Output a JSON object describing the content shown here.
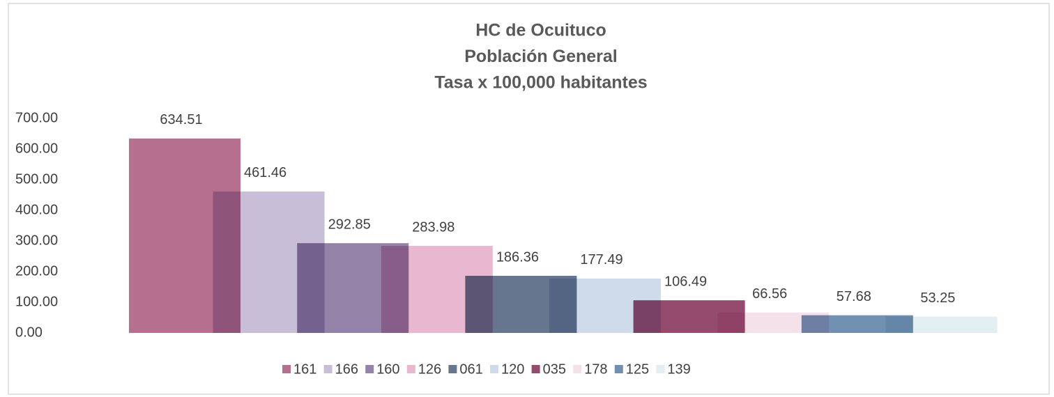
{
  "chart_data": {
    "type": "bar",
    "title": [
      "HC de Ocuituco",
      "Población General",
      "Tasa x 100,000 habitantes"
    ],
    "categories": [
      null
    ],
    "series": [
      {
        "name": "161",
        "color": "#b5708f",
        "values": [
          634.51
        ]
      },
      {
        "name": "166",
        "color": "#c8bed8",
        "values": [
          461.46
        ]
      },
      {
        "name": "160",
        "color": "#9482a8",
        "values": [
          292.85
        ]
      },
      {
        "name": "126",
        "color": "#e8b8d0",
        "values": [
          283.98
        ]
      },
      {
        "name": "061",
        "color": "#66768e",
        "values": [
          186.36
        ]
      },
      {
        "name": "120",
        "color": "#cfdbea",
        "values": [
          177.49
        ]
      },
      {
        "name": "035",
        "color": "#954b6e",
        "values": [
          106.49
        ]
      },
      {
        "name": "178",
        "color": "#f5e1ea",
        "values": [
          66.56
        ]
      },
      {
        "name": "125",
        "color": "#7290b2",
        "values": [
          57.68
        ]
      },
      {
        "name": "139",
        "color": "#e1eef2",
        "values": [
          53.25
        ]
      }
    ],
    "ylim": [
      0,
      700
    ],
    "yticks": [
      {
        "value": 0,
        "label": "0.00"
      },
      {
        "value": 100,
        "label": "100.00"
      },
      {
        "value": 200,
        "label": "200.00"
      },
      {
        "value": 300,
        "label": "300.00"
      },
      {
        "value": 400,
        "label": "400.00"
      },
      {
        "value": 500,
        "label": "500.00"
      },
      {
        "value": 600,
        "label": "600.00"
      },
      {
        "value": 700,
        "label": "700.00"
      }
    ],
    "legend": "bottom",
    "grid": false
  }
}
